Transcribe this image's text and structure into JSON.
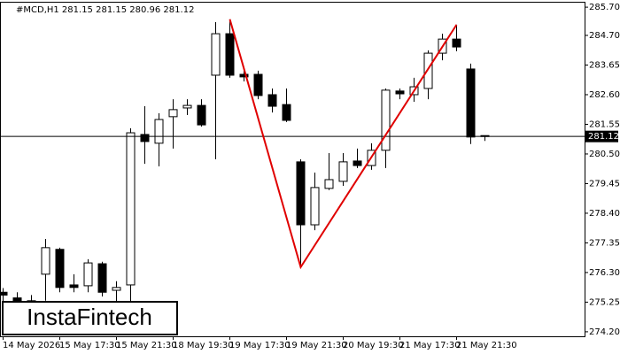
{
  "chart_data": {
    "type": "candlestick",
    "title": "#MCD,H1  281.15 281.15 280.96 281.12",
    "watermark": "InstaFintech",
    "categories": [
      "14 May 2026",
      null,
      null,
      null,
      "15 May 17:30",
      null,
      null,
      null,
      "15 May 21:30",
      null,
      null,
      null,
      "18 May 19:30",
      null,
      null,
      null,
      "19 May 17:30",
      null,
      null,
      null,
      "19 May 21:30",
      null,
      null,
      null,
      "20 May 19:30",
      null,
      null,
      null,
      "21 May 17:30",
      null,
      null,
      null,
      "21 May 21:30",
      null,
      null
    ],
    "open": [
      275.6,
      275.4,
      275.1,
      276.24,
      277.12,
      275.86,
      275.83,
      276.61,
      275.67,
      275.86,
      281.19,
      280.88,
      281.82,
      282.13,
      282.22,
      283.29,
      284.76,
      283.32,
      283.32,
      282.6,
      282.25,
      280.22,
      277.99,
      279.28,
      279.53,
      280.25,
      280.09,
      280.63,
      282.73,
      282.6,
      282.82,
      284.07,
      284.57,
      283.51,
      281.15
    ],
    "high": [
      275.75,
      275.6,
      275.5,
      277.49,
      277.18,
      276.24,
      276.77,
      276.68,
      275.99,
      281.41,
      282.19,
      281.94,
      282.44,
      282.44,
      282.44,
      285.17,
      285.27,
      283.45,
      283.45,
      282.82,
      282.82,
      280.31,
      279.84,
      280.53,
      280.53,
      280.69,
      280.88,
      282.82,
      282.82,
      283.2,
      284.17,
      284.76,
      285.08,
      283.7,
      281.15
    ],
    "low": [
      275.2,
      274.9,
      274.8,
      275.3,
      275.6,
      275.6,
      275.6,
      275.45,
      275.14,
      274.83,
      280.15,
      280.06,
      280.69,
      281.88,
      281.47,
      280.31,
      283.2,
      283.07,
      282.44,
      281.97,
      281.63,
      276.49,
      277.8,
      279.22,
      279.37,
      280.0,
      279.94,
      280.0,
      282.44,
      282.35,
      282.44,
      283.82,
      284.14,
      280.85,
      280.96
    ],
    "close": [
      275.5,
      275.1,
      275.3,
      277.18,
      275.77,
      275.77,
      276.64,
      275.6,
      275.77,
      281.25,
      280.94,
      281.72,
      282.07,
      282.22,
      281.53,
      284.76,
      283.29,
      283.23,
      282.57,
      282.19,
      281.69,
      277.99,
      279.31,
      279.59,
      280.22,
      280.09,
      280.63,
      282.76,
      282.63,
      282.88,
      284.07,
      284.57,
      284.29,
      281.1,
      281.12
    ],
    "up_color": "#ffffff",
    "down_color": "#000000",
    "ylim": [
      274.04,
      285.86
    ],
    "yticks": [
      {
        "value": 274.2,
        "label": "274.20"
      },
      {
        "value": 275.25,
        "label": "275.25"
      },
      {
        "value": 276.3,
        "label": "276.30"
      },
      {
        "value": 277.35,
        "label": "277.35"
      },
      {
        "value": 278.4,
        "label": "278.40"
      },
      {
        "value": 279.45,
        "label": "279.45"
      },
      {
        "value": 280.5,
        "label": "280.50"
      },
      {
        "value": 281.55,
        "label": "281.55"
      },
      {
        "value": 282.6,
        "label": "282.60"
      },
      {
        "value": 283.65,
        "label": "283.65"
      },
      {
        "value": 284.7,
        "label": "284.70"
      },
      {
        "value": 285.7,
        "label": "285.70"
      }
    ],
    "current_price": {
      "value": 281.12,
      "label": "281.12"
    },
    "pattern": {
      "color": "#e00000",
      "x": [
        16,
        21,
        32
      ],
      "y": [
        285.27,
        276.49,
        285.08
      ]
    }
  }
}
